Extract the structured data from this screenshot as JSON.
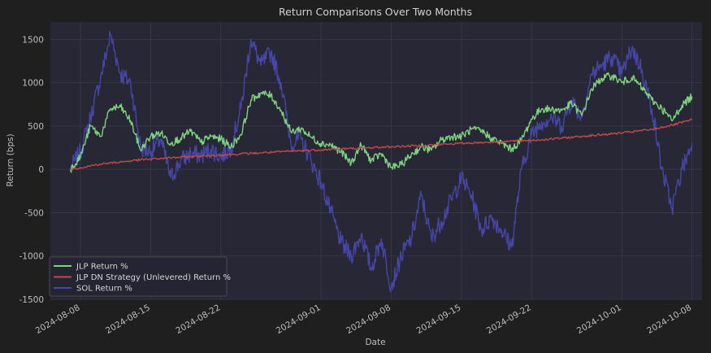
{
  "chart_data": {
    "type": "line",
    "title": "Return Comparisons Over Two Months",
    "xlabel": "Date",
    "ylabel": "Return (bps)",
    "ylim": [
      -1500,
      1700
    ],
    "xlim": [
      "2024-08-05",
      "2024-10-09"
    ],
    "yticks": [
      -1500,
      -1000,
      -500,
      0,
      500,
      1000,
      1500
    ],
    "xticks": [
      "2024-08-08",
      "2024-08-15",
      "2024-08-22",
      "2024-09-01",
      "2024-09-08",
      "2024-09-15",
      "2024-09-22",
      "2024-10-01",
      "2024-10-08"
    ],
    "grid": true,
    "legend_position": "bottom-left",
    "series": [
      {
        "name": "JLP Return %",
        "color": "#7fd17f",
        "points": [
          [
            "2024-08-07",
            0
          ],
          [
            "2024-08-08",
            150
          ],
          [
            "2024-08-09",
            500
          ],
          [
            "2024-08-10",
            380
          ],
          [
            "2024-08-11",
            700
          ],
          [
            "2024-08-12",
            720
          ],
          [
            "2024-08-13",
            560
          ],
          [
            "2024-08-14",
            220
          ],
          [
            "2024-08-15",
            380
          ],
          [
            "2024-08-16",
            420
          ],
          [
            "2024-08-17",
            300
          ],
          [
            "2024-08-18",
            360
          ],
          [
            "2024-08-19",
            440
          ],
          [
            "2024-08-20",
            310
          ],
          [
            "2024-08-21",
            380
          ],
          [
            "2024-08-22",
            350
          ],
          [
            "2024-08-23",
            260
          ],
          [
            "2024-08-24",
            400
          ],
          [
            "2024-08-25",
            800
          ],
          [
            "2024-08-26",
            880
          ],
          [
            "2024-08-27",
            850
          ],
          [
            "2024-08-28",
            680
          ],
          [
            "2024-08-29",
            430
          ],
          [
            "2024-08-30",
            470
          ],
          [
            "2024-08-31",
            370
          ],
          [
            "2024-09-01",
            300
          ],
          [
            "2024-09-02",
            280
          ],
          [
            "2024-09-03",
            200
          ],
          [
            "2024-09-04",
            70
          ],
          [
            "2024-09-05",
            280
          ],
          [
            "2024-09-06",
            100
          ],
          [
            "2024-09-07",
            180
          ],
          [
            "2024-09-08",
            20
          ],
          [
            "2024-09-09",
            50
          ],
          [
            "2024-09-10",
            170
          ],
          [
            "2024-09-11",
            260
          ],
          [
            "2024-09-12",
            220
          ],
          [
            "2024-09-13",
            340
          ],
          [
            "2024-09-14",
            380
          ],
          [
            "2024-09-15",
            380
          ],
          [
            "2024-09-16",
            460
          ],
          [
            "2024-09-17",
            440
          ],
          [
            "2024-09-18",
            360
          ],
          [
            "2024-09-19",
            300
          ],
          [
            "2024-09-20",
            230
          ],
          [
            "2024-09-21",
            340
          ],
          [
            "2024-09-22",
            580
          ],
          [
            "2024-09-23",
            700
          ],
          [
            "2024-09-24",
            690
          ],
          [
            "2024-09-25",
            680
          ],
          [
            "2024-09-26",
            760
          ],
          [
            "2024-09-27",
            620
          ],
          [
            "2024-09-28",
            930
          ],
          [
            "2024-09-29",
            1050
          ],
          [
            "2024-09-30",
            1080
          ],
          [
            "2024-10-01",
            1000
          ],
          [
            "2024-10-02",
            1060
          ],
          [
            "2024-10-03",
            940
          ],
          [
            "2024-10-04",
            800
          ],
          [
            "2024-10-05",
            700
          ],
          [
            "2024-10-06",
            560
          ],
          [
            "2024-10-07",
            740
          ],
          [
            "2024-10-08",
            840
          ]
        ]
      },
      {
        "name": "JLP DN Strategy (Unlevered) Return %",
        "color": "#c14a4a",
        "points": [
          [
            "2024-08-07",
            0
          ],
          [
            "2024-08-10",
            60
          ],
          [
            "2024-08-14",
            110
          ],
          [
            "2024-08-18",
            140
          ],
          [
            "2024-08-22",
            165
          ],
          [
            "2024-08-26",
            190
          ],
          [
            "2024-08-30",
            215
          ],
          [
            "2024-09-03",
            235
          ],
          [
            "2024-09-07",
            255
          ],
          [
            "2024-09-11",
            275
          ],
          [
            "2024-09-15",
            300
          ],
          [
            "2024-09-19",
            320
          ],
          [
            "2024-09-23",
            340
          ],
          [
            "2024-09-27",
            380
          ],
          [
            "2024-10-01",
            420
          ],
          [
            "2024-10-04",
            460
          ],
          [
            "2024-10-06",
            510
          ],
          [
            "2024-10-08",
            570
          ]
        ]
      },
      {
        "name": "SOL Return %",
        "color": "#4646a6",
        "points": [
          [
            "2024-08-07",
            0
          ],
          [
            "2024-08-08",
            200
          ],
          [
            "2024-08-09",
            600
          ],
          [
            "2024-08-10",
            1050
          ],
          [
            "2024-08-11",
            1550
          ],
          [
            "2024-08-12",
            1100
          ],
          [
            "2024-08-13",
            1000
          ],
          [
            "2024-08-14",
            250
          ],
          [
            "2024-08-15",
            200
          ],
          [
            "2024-08-16",
            350
          ],
          [
            "2024-08-17",
            -100
          ],
          [
            "2024-08-18",
            100
          ],
          [
            "2024-08-19",
            180
          ],
          [
            "2024-08-20",
            160
          ],
          [
            "2024-08-21",
            230
          ],
          [
            "2024-08-22",
            150
          ],
          [
            "2024-08-23",
            250
          ],
          [
            "2024-08-24",
            700
          ],
          [
            "2024-08-25",
            1500
          ],
          [
            "2024-08-26",
            1200
          ],
          [
            "2024-08-27",
            1350
          ],
          [
            "2024-08-28",
            1000
          ],
          [
            "2024-08-29",
            300
          ],
          [
            "2024-08-30",
            350
          ],
          [
            "2024-08-31",
            100
          ],
          [
            "2024-09-01",
            -150
          ],
          [
            "2024-09-02",
            -500
          ],
          [
            "2024-09-03",
            -850
          ],
          [
            "2024-09-04",
            -1000
          ],
          [
            "2024-09-05",
            -750
          ],
          [
            "2024-09-06",
            -1150
          ],
          [
            "2024-09-07",
            -800
          ],
          [
            "2024-09-08",
            -1350
          ],
          [
            "2024-09-09",
            -1000
          ],
          [
            "2024-09-10",
            -800
          ],
          [
            "2024-09-11",
            -300
          ],
          [
            "2024-09-12",
            -800
          ],
          [
            "2024-09-13",
            -600
          ],
          [
            "2024-09-14",
            -350
          ],
          [
            "2024-09-15",
            -100
          ],
          [
            "2024-09-16",
            -300
          ],
          [
            "2024-09-17",
            -700
          ],
          [
            "2024-09-18",
            -550
          ],
          [
            "2024-09-19",
            -700
          ],
          [
            "2024-09-20",
            -900
          ],
          [
            "2024-09-21",
            0
          ],
          [
            "2024-09-22",
            400
          ],
          [
            "2024-09-23",
            550
          ],
          [
            "2024-09-24",
            600
          ],
          [
            "2024-09-25",
            500
          ],
          [
            "2024-09-26",
            800
          ],
          [
            "2024-09-27",
            600
          ],
          [
            "2024-09-28",
            1100
          ],
          [
            "2024-09-29",
            1200
          ],
          [
            "2024-09-30",
            1300
          ],
          [
            "2024-10-01",
            1100
          ],
          [
            "2024-10-02",
            1400
          ],
          [
            "2024-10-03",
            1150
          ],
          [
            "2024-10-04",
            700
          ],
          [
            "2024-10-05",
            0
          ],
          [
            "2024-10-06",
            -450
          ],
          [
            "2024-10-07",
            0
          ],
          [
            "2024-10-08",
            300
          ]
        ]
      }
    ]
  }
}
